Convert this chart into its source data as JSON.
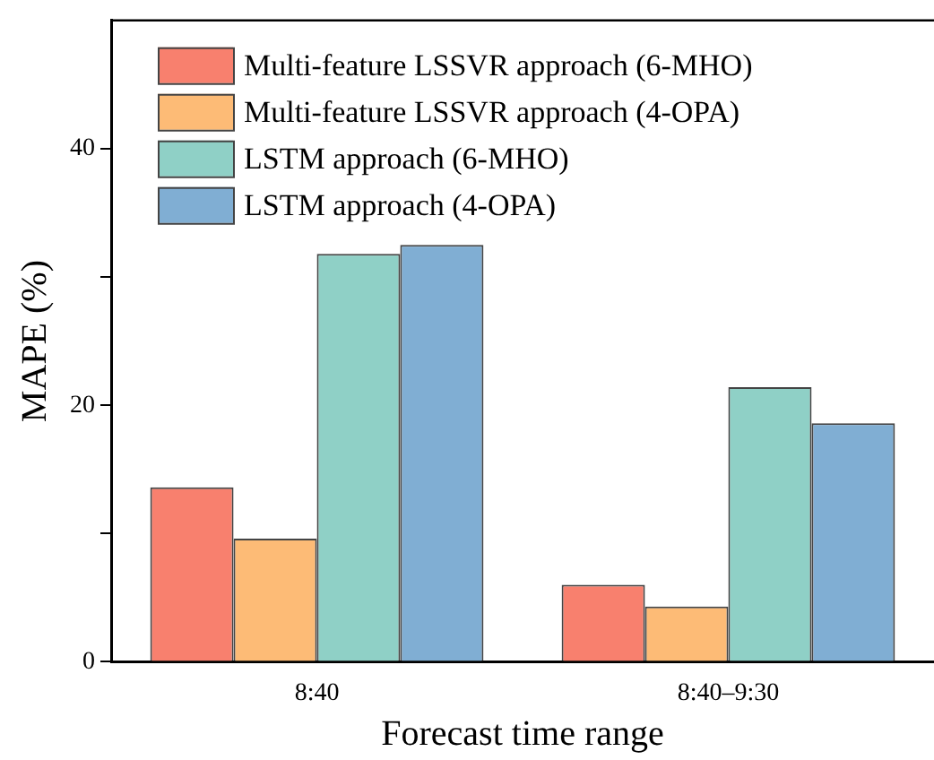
{
  "chart_data": {
    "type": "bar",
    "xlabel": "Forecast time range",
    "ylabel": "MAPE (%)",
    "categories": [
      "8:40",
      "8:40–9:30"
    ],
    "series": [
      {
        "name": "Multi-feature LSSVR approach (6-MHO)",
        "color": "#f8806e",
        "values": [
          13.6,
          6.0
        ]
      },
      {
        "name": "Multi-feature LSSVR approach (4-OPA)",
        "color": "#fdbb76",
        "values": [
          9.6,
          4.3
        ]
      },
      {
        "name": "LSTM approach (6-MHO)",
        "color": "#8fd0c6",
        "values": [
          31.8,
          21.4
        ]
      },
      {
        "name": "LSTM approach (4-OPA)",
        "color": "#80aed3",
        "values": [
          32.5,
          18.6
        ]
      }
    ],
    "ylim": [
      0,
      50
    ],
    "yticks": [
      0,
      {
        "value": 10,
        "label": null
      },
      20,
      {
        "value": 30,
        "label": null
      },
      40
    ],
    "grid": false,
    "legend": "top left"
  }
}
